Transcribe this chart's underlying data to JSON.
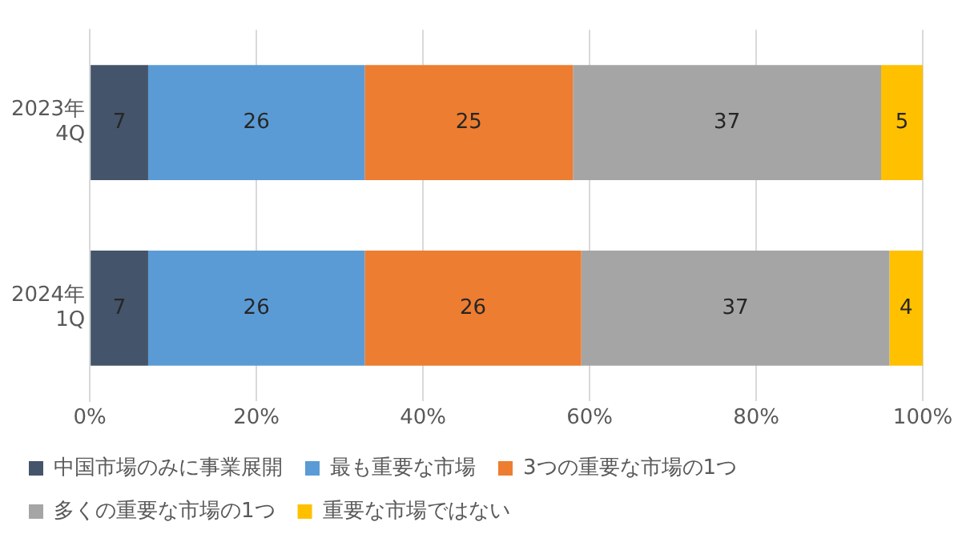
{
  "chart_data": {
    "type": "bar",
    "orientation": "horizontal",
    "stacked": true,
    "categories": [
      "2023年4Q",
      "2024年1Q"
    ],
    "series": [
      {
        "name": "中国市場のみに事業展開",
        "color": "#44546a",
        "values": [
          7,
          7
        ]
      },
      {
        "name": "最も重要な市場",
        "color": "#5b9bd5",
        "values": [
          26,
          26
        ]
      },
      {
        "name": "3つの重要な市場の1つ",
        "color": "#ed7d31",
        "values": [
          25,
          26
        ]
      },
      {
        "name": "多くの重要な市場の1つ",
        "color": "#a5a5a5",
        "values": [
          37,
          37
        ]
      },
      {
        "name": "重要な市場ではない",
        "color": "#ffc000",
        "values": [
          5,
          4
        ]
      }
    ],
    "xlim": [
      0,
      100
    ],
    "xticks": [
      {
        "value": 0,
        "label": "0%"
      },
      {
        "value": 20,
        "label": "20%"
      },
      {
        "value": 40,
        "label": "40%"
      },
      {
        "value": 60,
        "label": "60%"
      },
      {
        "value": 80,
        "label": "80%"
      },
      {
        "value": 100,
        "label": "100%"
      }
    ],
    "grid": "x",
    "legend": "bottom",
    "data_labels": true
  }
}
